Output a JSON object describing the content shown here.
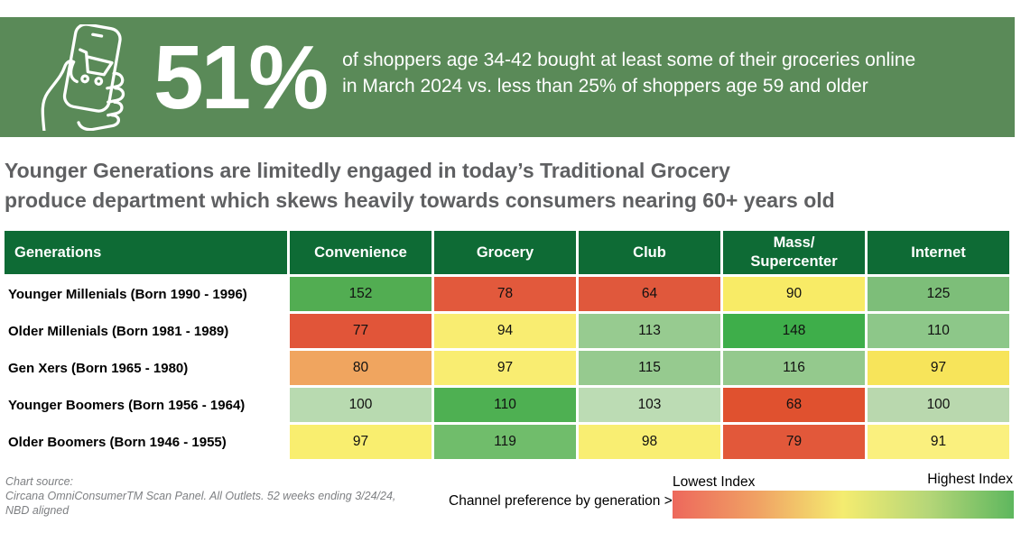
{
  "colors": {
    "banner_green": "#5a8a58",
    "header_green": "#0e6b35",
    "headline_gray": "#5f6062",
    "source_gray": "#7d7f82"
  },
  "banner": {
    "icon": "phone-shopping-cart-icon",
    "stat": "51%",
    "description_line1": "of shoppers age 34-42 bought at least some of their groceries online",
    "description_line2": "in March 2024 vs. less than 25% of shoppers age 59 and older"
  },
  "headline": {
    "line1": "Younger Generations are limitedly engaged in today’s Traditional Grocery",
    "line2": "produce department which skews heavily towards consumers nearing 60+ years old"
  },
  "chart_data": {
    "type": "heatmap",
    "columns": [
      "Generations",
      "Convenience",
      "Grocery",
      "Club",
      "Mass/\nSupercenter",
      "Internet"
    ],
    "rows": [
      {
        "label": "Younger Millenials (Born 1990 - 1996)",
        "values": [
          152,
          78,
          64,
          90,
          125
        ],
        "colors": [
          "#52ad52",
          "#e2593c",
          "#e0583c",
          "#f8eb66",
          "#7dbe79"
        ]
      },
      {
        "label": "Older Millenials (Born 1981 - 1989)",
        "values": [
          77,
          94,
          113,
          148,
          110
        ],
        "colors": [
          "#e15539",
          "#f9ed71",
          "#97cb90",
          "#3eae4a",
          "#8dc789"
        ]
      },
      {
        "label": "Gen Xers (Born 1965 - 1980)",
        "values": [
          80,
          97,
          115,
          116,
          97
        ],
        "colors": [
          "#f0a55f",
          "#f9ed71",
          "#96ca8f",
          "#94c98d",
          "#f7e45a"
        ]
      },
      {
        "label": "Younger Boomers (Born 1956 - 1964)",
        "values": [
          100,
          110,
          103,
          68,
          100
        ],
        "colors": [
          "#b8dab0",
          "#4eb052",
          "#bcdcb4",
          "#e0512f",
          "#b9d8ae"
        ]
      },
      {
        "label": "Older Boomers (Born 1946 - 1955)",
        "values": [
          97,
          119,
          98,
          79,
          91
        ],
        "colors": [
          "#f9ee6f",
          "#70bd6b",
          "#f9ee72",
          "#e2583a",
          "#faf07e"
        ]
      }
    ],
    "legend": {
      "low_label": "Lowest Index",
      "high_label": "Highest Index",
      "gradient": [
        "#ed685c",
        "#f0a264",
        "#f4ec70",
        "#b5d678",
        "#5eb75e"
      ]
    }
  },
  "footer": {
    "source_lines": [
      "Chart source:",
      "Circana OmniConsumerTM Scan Panel. All Outlets. 52 weeks ending 3/24/24,",
      "NBD aligned"
    ],
    "legend_caption": "Channel preference by generation >"
  }
}
